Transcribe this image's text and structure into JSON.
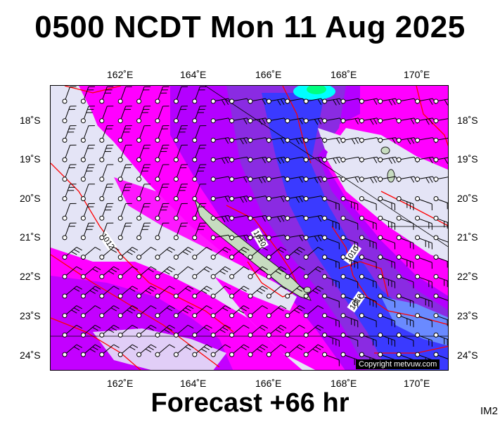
{
  "title": "0500 NCDT Mon 11 Aug 2025",
  "footer": "Forecast +66 hr",
  "image_code": "IM2",
  "copyright": "Copyright metvuw.com",
  "map": {
    "lon_labels": [
      "162˚E",
      "164˚E",
      "166˚E",
      "168˚E",
      "170˚E"
    ],
    "lat_labels": [
      "18˚S",
      "19˚S",
      "20˚S",
      "21˚S",
      "22˚S",
      "23˚S",
      "24˚S"
    ],
    "isobar_labels": [
      "1012",
      "1010",
      "1010",
      "1010"
    ],
    "colors": {
      "background": "#e4e4f6",
      "magenta": "#ff00ff",
      "violet": "#b400ff",
      "purple": "#8a2be2",
      "blue": "#3a3aff",
      "light_blue": "#6a8aff",
      "cyan": "#00ffff",
      "green": "#00ff80",
      "isobar": "#ff0000",
      "land": "#c7dcc0"
    }
  }
}
